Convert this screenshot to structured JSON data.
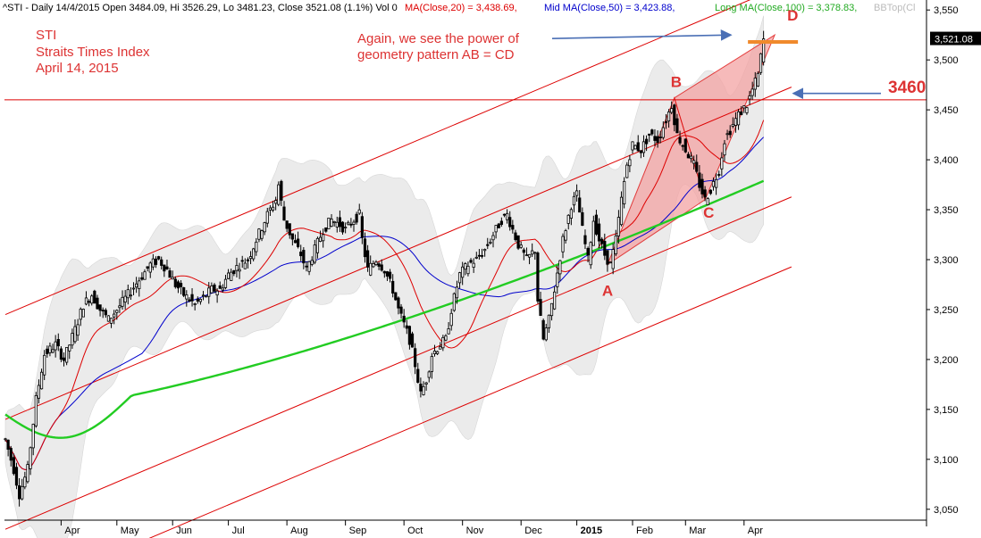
{
  "header": {
    "symbol_line": "^STI - Daily 14/4/2015 Open 3484.09, Hi 3526.29, Lo 3481.23, Close 3521.08 (1.1%) Vol 0",
    "ma20_label": "MA(Close,20) = 3,438.69,",
    "ma50_label": "Mid MA(Close,50) = 3,423.88,",
    "ma100_label": "Long MA(Close,100) = 3,378.83,",
    "bb_label": "BBTop(Cl"
  },
  "annotations": {
    "title_line1": "STI",
    "title_line2": "Straits Times Index",
    "title_line3": "April 14, 2015",
    "note_line1": "Again, we see the power of",
    "note_line2": "geometry pattern AB = CD",
    "level_label": "3460",
    "point_a": "A",
    "point_b": "B",
    "point_c": "C",
    "point_d": "D",
    "last_price_tag": "3,521.08"
  },
  "colors": {
    "price": "#000000",
    "ma20": "#dd0000",
    "ma50": "#0000cc",
    "ma100": "#22cc22",
    "channel": "#dd0000",
    "band_fill": "#e8e8e8",
    "pattern_fill": "#f4a3a3",
    "annotation": "#dd3333",
    "arrow": "#4a6fb5",
    "d_bar": "#f08a2c"
  },
  "chart_data": {
    "type": "candlestick",
    "title": "^STI Daily",
    "ylim": [
      3040,
      3560
    ],
    "y_ticks": [
      3050,
      3100,
      3150,
      3200,
      3250,
      3300,
      3350,
      3400,
      3450,
      3500,
      3550
    ],
    "y_tick_labels": [
      "3,050",
      "3,100",
      "3,150",
      "3,200",
      "3,250",
      "3,300",
      "3,350",
      "3,400",
      "3,450",
      "3,500",
      "3,550"
    ],
    "x_tick_labels": [
      "Apr",
      "May",
      "Jun",
      "Jul",
      "Aug",
      "Sep",
      "Oct",
      "Nov",
      "Dec",
      "2015",
      "Feb",
      "Mar",
      "Apr"
    ],
    "x_tick_days": [
      20,
      40,
      60,
      80,
      101,
      122,
      143,
      164,
      185,
      205,
      225,
      244,
      265
    ],
    "anchors": [
      [
        0,
        3120
      ],
      [
        3,
        3090
      ],
      [
        5,
        3065
      ],
      [
        8,
        3090
      ],
      [
        11,
        3160
      ],
      [
        14,
        3205
      ],
      [
        18,
        3215
      ],
      [
        21,
        3200
      ],
      [
        25,
        3230
      ],
      [
        28,
        3255
      ],
      [
        31,
        3265
      ],
      [
        34,
        3250
      ],
      [
        37,
        3240
      ],
      [
        40,
        3250
      ],
      [
        44,
        3265
      ],
      [
        48,
        3280
      ],
      [
        52,
        3295
      ],
      [
        55,
        3300
      ],
      [
        58,
        3290
      ],
      [
        61,
        3275
      ],
      [
        64,
        3265
      ],
      [
        68,
        3255
      ],
      [
        71,
        3262
      ],
      [
        74,
        3270
      ],
      [
        77,
        3270
      ],
      [
        80,
        3285
      ],
      [
        84,
        3295
      ],
      [
        87,
        3300
      ],
      [
        90,
        3320
      ],
      [
        94,
        3345
      ],
      [
        97,
        3360
      ],
      [
        98,
        3375
      ],
      [
        100,
        3340
      ],
      [
        103,
        3320
      ],
      [
        106,
        3305
      ],
      [
        108,
        3290
      ],
      [
        111,
        3310
      ],
      [
        114,
        3330
      ],
      [
        117,
        3340
      ],
      [
        120,
        3335
      ],
      [
        122,
        3330
      ],
      [
        125,
        3340
      ],
      [
        127,
        3345
      ],
      [
        128,
        3320
      ],
      [
        130,
        3290
      ],
      [
        133,
        3300
      ],
      [
        136,
        3290
      ],
      [
        139,
        3270
      ],
      [
        141,
        3250
      ],
      [
        143,
        3235
      ],
      [
        145,
        3220
      ],
      [
        147,
        3195
      ],
      [
        149,
        3165
      ],
      [
        151,
        3180
      ],
      [
        153,
        3205
      ],
      [
        156,
        3215
      ],
      [
        158,
        3220
      ],
      [
        160,
        3250
      ],
      [
        163,
        3285
      ],
      [
        166,
        3295
      ],
      [
        169,
        3300
      ],
      [
        172,
        3310
      ],
      [
        175,
        3325
      ],
      [
        178,
        3340
      ],
      [
        180,
        3345
      ],
      [
        182,
        3330
      ],
      [
        184,
        3315
      ],
      [
        187,
        3300
      ],
      [
        190,
        3310
      ],
      [
        191,
        3260
      ],
      [
        193,
        3220
      ],
      [
        195,
        3240
      ],
      [
        197,
        3270
      ],
      [
        200,
        3320
      ],
      [
        203,
        3355
      ],
      [
        205,
        3365
      ],
      [
        207,
        3330
      ],
      [
        209,
        3300
      ],
      [
        211,
        3340
      ],
      [
        213,
        3320
      ],
      [
        215,
        3305
      ],
      [
        217,
        3295
      ],
      [
        219,
        3320
      ],
      [
        221,
        3360
      ],
      [
        223,
        3395
      ],
      [
        225,
        3415
      ],
      [
        228,
        3410
      ],
      [
        231,
        3425
      ],
      [
        234,
        3420
      ],
      [
        237,
        3440
      ],
      [
        239,
        3455
      ],
      [
        241,
        3425
      ],
      [
        244,
        3410
      ],
      [
        247,
        3395
      ],
      [
        249,
        3375
      ],
      [
        251,
        3360
      ],
      [
        253,
        3370
      ],
      [
        256,
        3390
      ],
      [
        258,
        3420
      ],
      [
        261,
        3435
      ],
      [
        263,
        3445
      ],
      [
        266,
        3455
      ],
      [
        268,
        3470
      ],
      [
        270,
        3485
      ],
      [
        272,
        3521
      ]
    ],
    "last_close": 3521.08,
    "ma_at_last": {
      "ma20": 3438.69,
      "ma50": 3423.88,
      "ma100": 3378.83
    },
    "ma100_start": 3145,
    "ma100_min": 3115,
    "horizontal_level": 3460,
    "pattern_points": {
      "A": [
        216,
        3295
      ],
      "B": [
        240,
        3462
      ],
      "C": [
        251,
        3360
      ],
      "D": [
        276,
        3525
      ]
    },
    "d_marker_price": 3518,
    "price_tag_price": 3521.08,
    "arrow_d_price": 3525,
    "arrow_3460_price": 3470,
    "channel_slope": 1.18,
    "channel_intercepts": [
      3245,
      3140,
      3030,
      2960
    ],
    "channel_first_day": [
      0,
      0,
      0,
      47
    ]
  }
}
